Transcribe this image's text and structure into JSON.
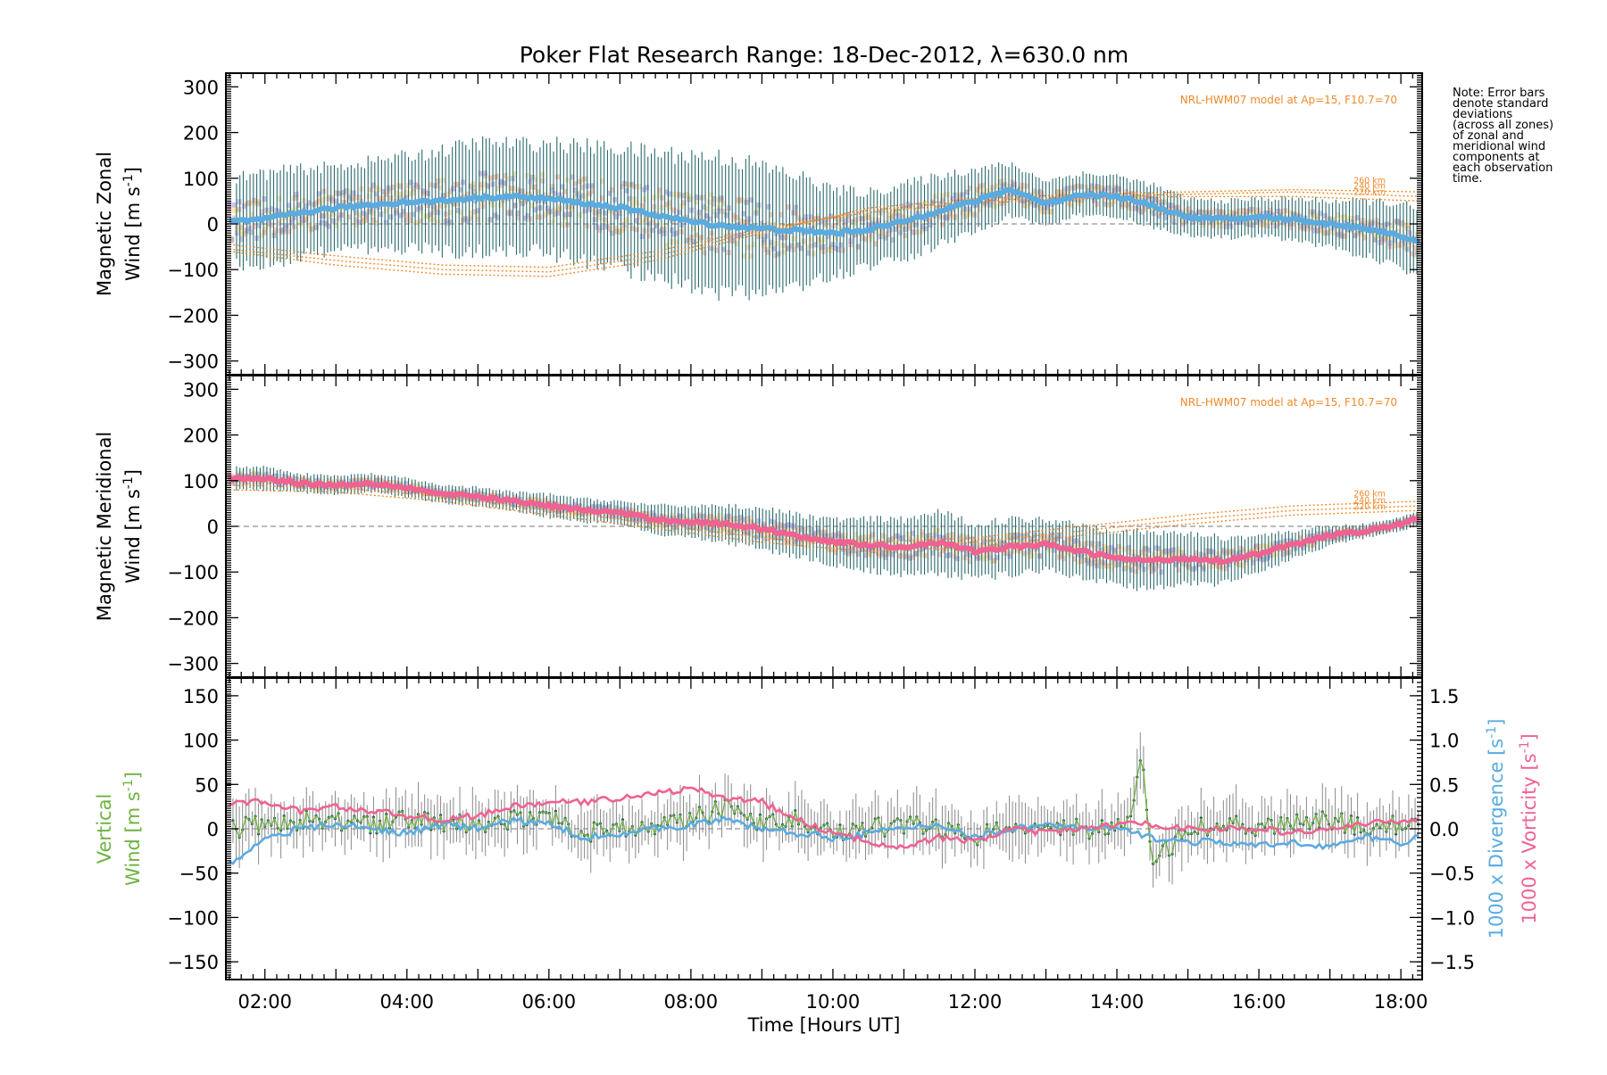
{
  "chart_data": [
    {
      "type": "line",
      "panel": "zonal",
      "title": "Poker Flat Research Range: 18-Dec-2012, λ=630.0 nm",
      "ylabel_line1": "Magnetic Zonal",
      "ylabel_line2": "Wind [m s",
      "ylabel_sup": "-1",
      "ylabel_close": "]",
      "ylim": [
        -330,
        330
      ],
      "xlim": [
        1.45,
        18.3
      ],
      "yticks": [
        -300,
        -200,
        -100,
        0,
        100,
        200,
        300
      ],
      "model_note": "NRL-HWM07 model at Ap=15, F10.7=70",
      "model_altitudes": [
        "260 km",
        "240 km",
        "220 km"
      ],
      "note_lines": [
        "Note: Error bars",
        "denote standard",
        "deviations",
        "(across all zones)",
        "of zonal and",
        "meridional wind",
        "components at",
        "each observation",
        "time."
      ],
      "colors": {
        "mean": "#5aabe0",
        "errorbar": "#2b6a6f",
        "model": "#ef8a2b",
        "zone_a": "#f6d98f",
        "zone_b": "#f5b49a",
        "zone_c": "#aaa8dd"
      },
      "series": [
        {
          "name": "",
          "x": [
            1.5,
            2.0,
            2.5,
            3.0,
            3.5,
            4.0,
            4.5,
            5.0,
            5.5,
            6.0,
            6.5,
            7.0,
            7.5,
            8.0,
            8.5,
            9.0,
            9.5,
            10.0,
            10.5,
            11.0,
            11.5,
            12.0,
            12.5,
            13.0,
            13.5,
            14.0,
            14.5,
            15.0,
            15.5,
            16.0,
            16.5,
            17.0,
            17.5,
            18.0,
            18.3
          ],
          "y": [
            5,
            10,
            25,
            35,
            42,
            48,
            50,
            58,
            60,
            55,
            45,
            35,
            20,
            5,
            -5,
            -10,
            -15,
            -20,
            -12,
            5,
            30,
            50,
            75,
            45,
            65,
            60,
            40,
            15,
            10,
            15,
            10,
            0,
            -10,
            -25,
            -45
          ],
          "sd": [
            95,
            100,
            95,
            90,
            95,
            100,
            110,
            120,
            115,
            120,
            125,
            130,
            135,
            145,
            150,
            135,
            120,
            95,
            80,
            80,
            75,
            70,
            55,
            50,
            45,
            45,
            45,
            40,
            40,
            40,
            45,
            50,
            60,
            70,
            70
          ]
        }
      ],
      "model_curves": [
        {
          "x": [
            1.5,
            3,
            4.5,
            6,
            7.5,
            9,
            10.5,
            12,
            13.5,
            15,
            16.5,
            18.3
          ],
          "y": [
            -60,
            -90,
            -110,
            -115,
            -80,
            -20,
            35,
            55,
            65,
            70,
            75,
            70
          ]
        },
        {
          "x": [
            1.5,
            3,
            4.5,
            6,
            7.5,
            9,
            10.5,
            12,
            13.5,
            15,
            16.5,
            18.3
          ],
          "y": [
            -55,
            -80,
            -100,
            -105,
            -70,
            -15,
            30,
            50,
            60,
            65,
            70,
            60
          ]
        },
        {
          "x": [
            1.5,
            3,
            4.5,
            6,
            7.5,
            9,
            10.5,
            12,
            13.5,
            15,
            16.5,
            18.3
          ],
          "y": [
            -45,
            -70,
            -90,
            -95,
            -60,
            -10,
            25,
            45,
            55,
            60,
            60,
            50
          ]
        }
      ]
    },
    {
      "type": "line",
      "panel": "meridional",
      "ylabel_line1": "Magnetic Meridional",
      "ylabel_line2": "Wind [m s",
      "ylabel_sup": "-1",
      "ylabel_close": "]",
      "ylim": [
        -330,
        330
      ],
      "xlim": [
        1.45,
        18.3
      ],
      "yticks": [
        -300,
        -200,
        -100,
        0,
        100,
        200,
        300
      ],
      "model_note": "NRL-HWM07 model at Ap=15, F10.7=70",
      "model_altitudes": [
        "260 km",
        "240 km",
        "220 km"
      ],
      "colors": {
        "mean": "#f06292",
        "errorbar": "#2b6a6f",
        "model": "#ef8a2b",
        "zone_a": "#f6d98f",
        "zone_b": "#f5b49a",
        "zone_c": "#aaa8dd"
      },
      "series": [
        {
          "name": "",
          "x": [
            1.5,
            2.0,
            2.5,
            3.0,
            3.5,
            4.0,
            4.5,
            5.0,
            5.5,
            6.0,
            6.5,
            7.0,
            7.5,
            8.0,
            8.5,
            9.0,
            9.5,
            10.0,
            10.5,
            11.0,
            11.5,
            12.0,
            12.5,
            13.0,
            13.5,
            14.0,
            14.5,
            15.0,
            15.5,
            16.0,
            16.5,
            17.0,
            17.5,
            18.0,
            18.3
          ],
          "y": [
            105,
            105,
            95,
            90,
            95,
            85,
            70,
            65,
            55,
            45,
            35,
            30,
            15,
            10,
            5,
            -5,
            -20,
            -35,
            -40,
            -45,
            -35,
            -55,
            -45,
            -40,
            -55,
            -70,
            -75,
            -70,
            -75,
            -60,
            -40,
            -20,
            -10,
            5,
            20
          ],
          "sd": [
            25,
            25,
            20,
            20,
            20,
            20,
            20,
            20,
            20,
            25,
            25,
            25,
            30,
            35,
            40,
            45,
            45,
            50,
            55,
            60,
            65,
            60,
            60,
            55,
            60,
            60,
            60,
            55,
            50,
            40,
            30,
            20,
            15,
            15,
            15
          ]
        }
      ],
      "model_curves": [
        {
          "x": [
            1.5,
            3,
            4.5,
            6,
            7.5,
            9,
            10.5,
            12,
            13.5,
            15,
            16.5,
            18.3
          ],
          "y": [
            100,
            95,
            75,
            45,
            15,
            -15,
            -35,
            -25,
            0,
            25,
            45,
            55
          ]
        },
        {
          "x": [
            1.5,
            3,
            4.5,
            6,
            7.5,
            9,
            10.5,
            12,
            13.5,
            15,
            16.5,
            18.3
          ],
          "y": [
            90,
            85,
            65,
            35,
            5,
            -25,
            -45,
            -35,
            -10,
            15,
            35,
            45
          ]
        },
        {
          "x": [
            1.5,
            3,
            4.5,
            6,
            7.5,
            9,
            10.5,
            12,
            13.5,
            15,
            16.5,
            18.3
          ],
          "y": [
            80,
            75,
            55,
            25,
            -5,
            -35,
            -55,
            -45,
            -20,
            5,
            25,
            35
          ]
        }
      ]
    },
    {
      "type": "line",
      "panel": "vertical",
      "xlabel": "Time [Hours UT]",
      "xticks": [
        "02:00",
        "04:00",
        "06:00",
        "08:00",
        "10:00",
        "12:00",
        "14:00",
        "16:00",
        "18:00"
      ],
      "xtick_hours": [
        2,
        4,
        6,
        8,
        10,
        12,
        14,
        16,
        18
      ],
      "xlim": [
        1.45,
        18.3
      ],
      "ylabel_line1": "Vertical",
      "ylabel_line2": "Wind [m s",
      "ylabel_sup": "-1",
      "ylabel_close": "]",
      "ylim": [
        -170,
        170
      ],
      "yticks": [
        -150,
        -100,
        -50,
        0,
        50,
        100,
        150
      ],
      "y2label_div": "1000 x Divergence [s",
      "y2label_vort": "1000 x Vorticity [s",
      "y2label_sup": "-1",
      "y2label_close": "]",
      "y2lim": [
        -1.7,
        1.7
      ],
      "y2ticks": [
        -1.5,
        -1.0,
        -0.5,
        0.0,
        0.5,
        1.0,
        1.5
      ],
      "y2ticklabels": [
        "−1.5",
        "−1.0",
        "−0.5",
        "0.0",
        "0.5",
        "1.0",
        "1.5"
      ],
      "colors": {
        "vertical": "#6db33f",
        "divergence": "#5aabe0",
        "vorticity": "#f06292",
        "errorbar": "#8a8a8a",
        "points": "#1f4f5a"
      },
      "series": [
        {
          "name": "",
          "x": [
            1.5,
            2.0,
            2.5,
            3.0,
            3.5,
            4.0,
            4.5,
            5.0,
            5.5,
            6.0,
            6.5,
            7.0,
            7.5,
            8.0,
            8.5,
            9.0,
            9.5,
            10.0,
            10.5,
            11.0,
            11.5,
            12.0,
            12.5,
            13.0,
            13.5,
            14.0,
            14.2,
            14.35,
            14.5,
            15.0,
            15.5,
            16.0,
            16.5,
            17.0,
            17.5,
            18.0,
            18.3
          ],
          "y": [
            0,
            5,
            10,
            8,
            5,
            10,
            8,
            5,
            10,
            15,
            -5,
            0,
            5,
            10,
            25,
            5,
            10,
            -5,
            0,
            5,
            0,
            -10,
            5,
            5,
            0,
            0,
            10,
            80,
            -40,
            0,
            5,
            0,
            5,
            10,
            0,
            5,
            0
          ]
        },
        {
          "name": "",
          "axis": "right",
          "x": [
            1.5,
            2.0,
            2.5,
            3.0,
            3.5,
            4.0,
            4.5,
            5.0,
            5.5,
            6.0,
            6.5,
            7.0,
            7.5,
            8.0,
            8.5,
            9.0,
            9.5,
            10.0,
            10.5,
            11.0,
            11.5,
            12.0,
            12.5,
            13.0,
            13.5,
            14.0,
            14.5,
            15.0,
            15.5,
            16.0,
            16.5,
            17.0,
            17.5,
            18.0,
            18.3
          ],
          "y": [
            -0.4,
            -0.1,
            0.0,
            0.05,
            0.0,
            -0.05,
            0.05,
            0.0,
            0.1,
            0.05,
            -0.1,
            -0.05,
            0.0,
            0.05,
            0.1,
            0.0,
            -0.05,
            -0.1,
            -0.05,
            0.0,
            0.05,
            -0.1,
            0.0,
            0.05,
            0.0,
            0.0,
            -0.1,
            -0.15,
            -0.15,
            -0.2,
            -0.15,
            -0.2,
            -0.1,
            -0.15,
            -0.1
          ]
        },
        {
          "name": "",
          "axis": "right",
          "x": [
            1.5,
            2.0,
            2.5,
            3.0,
            3.5,
            4.0,
            4.5,
            5.0,
            5.5,
            6.0,
            6.5,
            7.0,
            7.5,
            8.0,
            8.5,
            9.0,
            9.5,
            10.0,
            10.5,
            11.0,
            11.5,
            12.0,
            12.5,
            13.0,
            13.5,
            14.0,
            14.5,
            15.0,
            15.5,
            16.0,
            16.5,
            17.0,
            17.5,
            18.0,
            18.3
          ],
          "y": [
            0.3,
            0.3,
            0.2,
            0.25,
            0.2,
            0.15,
            0.1,
            0.15,
            0.25,
            0.3,
            0.3,
            0.35,
            0.4,
            0.45,
            0.35,
            0.3,
            0.1,
            -0.05,
            -0.15,
            -0.2,
            -0.1,
            -0.15,
            0.0,
            -0.05,
            0.0,
            0.05,
            0.05,
            0.0,
            0.0,
            0.0,
            -0.05,
            0.0,
            0.05,
            0.1,
            0.1
          ]
        }
      ]
    }
  ]
}
